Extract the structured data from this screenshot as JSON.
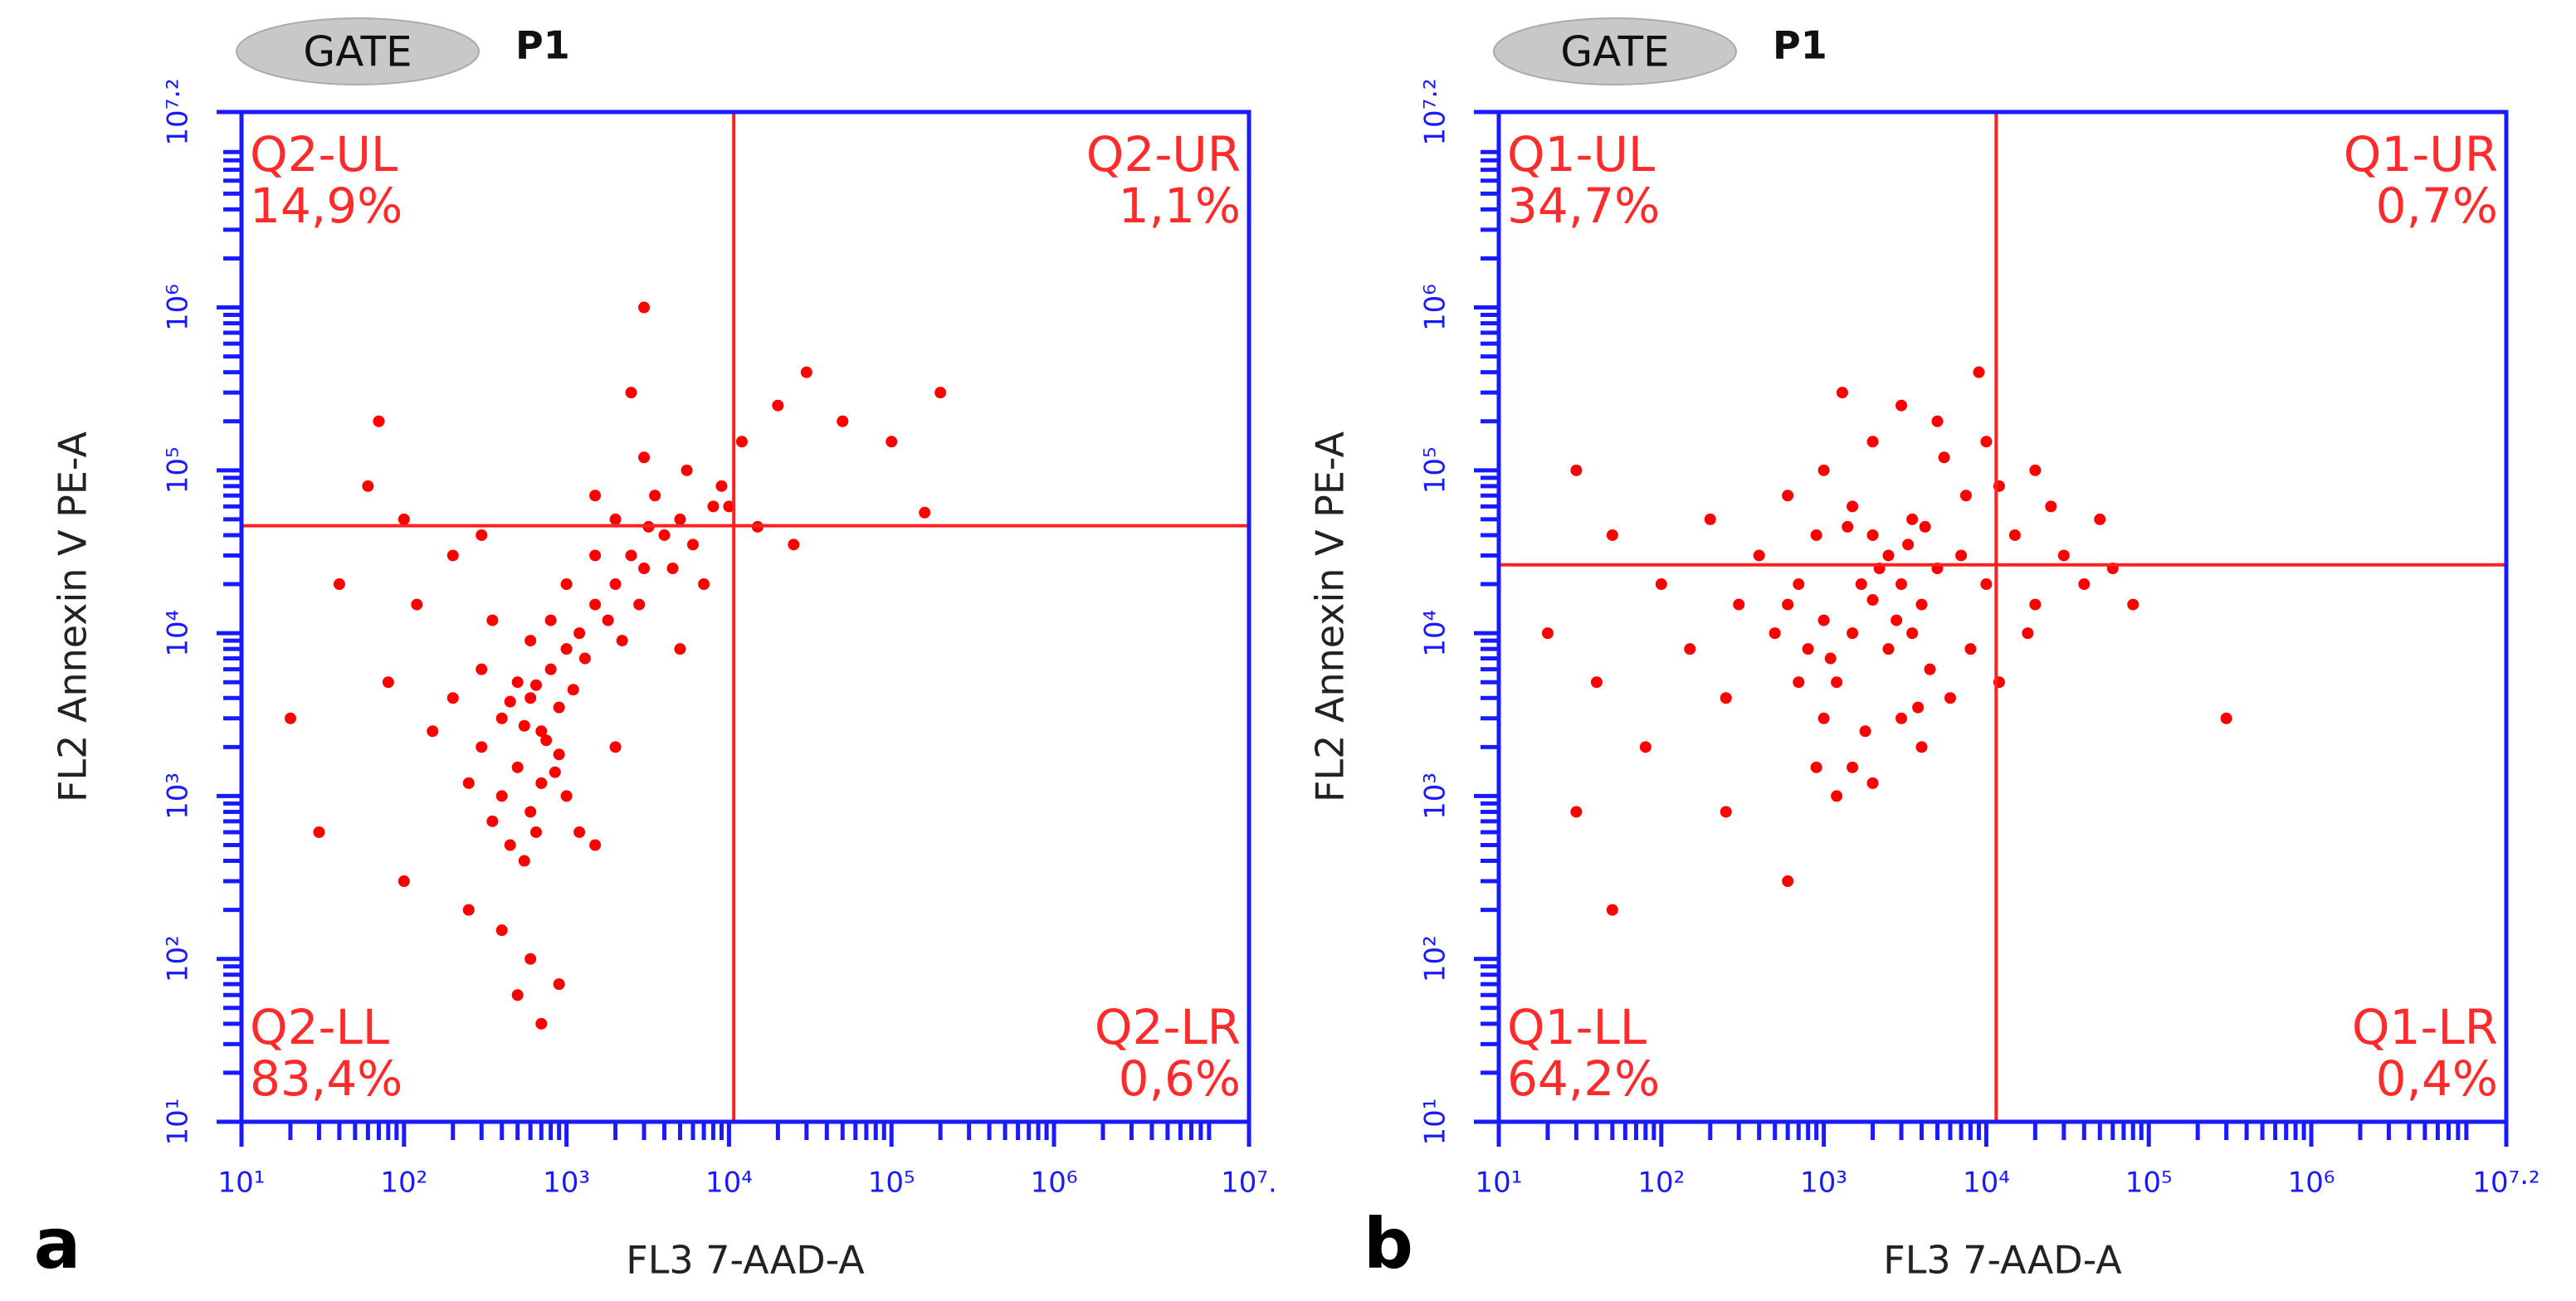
{
  "chart_data": [
    {
      "type": "scatter",
      "panel": "a",
      "gate_label": "GATE",
      "gate_name": "P1",
      "xlabel": "FL3 7-AAD-A",
      "ylabel": "FL2 Annexin V PE-A",
      "xscale": "log",
      "yscale": "log",
      "color": "#ff0000",
      "xlim": [
        10,
        15848932
      ],
      "ylim": [
        10,
        15848932
      ],
      "xticks": [
        {
          "value": 10,
          "label": "10¹"
        },
        {
          "value": 100,
          "label": "10²"
        },
        {
          "value": 1000,
          "label": "10³"
        },
        {
          "value": 10000,
          "label": "10⁴"
        },
        {
          "value": 100000,
          "label": "10⁵"
        },
        {
          "value": 1000000,
          "label": "10⁶"
        },
        {
          "value": 15848932,
          "label": "10⁷."
        }
      ],
      "yticks": [
        {
          "value": 10,
          "label": "10¹"
        },
        {
          "value": 100,
          "label": "10²"
        },
        {
          "value": 1000,
          "label": "10³"
        },
        {
          "value": 10000,
          "label": "10⁴"
        },
        {
          "value": 100000,
          "label": "10⁵"
        },
        {
          "value": 1000000,
          "label": "10⁶"
        },
        {
          "value": 15848932,
          "label": "10⁷·²"
        }
      ],
      "x_gate": 10700,
      "y_gate": 45700,
      "quadrants": [
        {
          "name": "Q2-UL",
          "value": 14.9,
          "value_label": "14,9%"
        },
        {
          "name": "Q2-UR",
          "value": 1.1,
          "value_label": "1,1%"
        },
        {
          "name": "Q2-LL",
          "value": 83.4,
          "value_label": "83,4%"
        },
        {
          "name": "Q2-LR",
          "value": 0.6,
          "value_label": "0,6%"
        }
      ],
      "x": [
        300,
        400,
        500,
        600,
        700,
        500,
        800,
        1000,
        400,
        600,
        700,
        900,
        1200,
        1500,
        2000,
        2500,
        3000,
        4000,
        5000,
        6000,
        8000,
        3500,
        2000,
        1500,
        1000,
        800,
        600,
        300,
        200,
        150,
        250,
        350,
        450,
        550,
        650,
        900,
        1100,
        1300,
        1800,
        2200,
        2800,
        3200,
        4500,
        7000,
        9000,
        5500,
        3000,
        12000,
        20000,
        30000,
        50000,
        100000,
        200000,
        40,
        60,
        80,
        120,
        20,
        30,
        100,
        250,
        400,
        600,
        900,
        700,
        500,
        1500,
        2000,
        1200,
        5000,
        10000,
        15000,
        200,
        300,
        100,
        2500,
        1000,
        750,
        550,
        450,
        650,
        850,
        3000,
        1500,
        350,
        160000,
        25000,
        70
      ],
      "values": [
        2000,
        3000,
        1500,
        4000,
        2500,
        5000,
        6000,
        8000,
        1000,
        800,
        1200,
        3500,
        10000,
        15000,
        20000,
        30000,
        25000,
        40000,
        50000,
        35000,
        60000,
        70000,
        50000,
        30000,
        20000,
        12000,
        9000,
        6000,
        4000,
        2500,
        1200,
        700,
        500,
        400,
        600,
        1800,
        4500,
        7000,
        12000,
        9000,
        15000,
        45000,
        25000,
        20000,
        80000,
        100000,
        120000,
        150000,
        250000,
        400000,
        200000,
        150000,
        300000,
        20000,
        80000,
        5000,
        15000,
        3000,
        600,
        300,
        200,
        150,
        100,
        70,
        40,
        60,
        500,
        2000,
        600,
        8000,
        60000,
        45000,
        30000,
        40000,
        50000,
        300000,
        1000,
        2200,
        2700,
        3800,
        4800,
        1400,
        1000000,
        70000,
        12000,
        55000,
        35000,
        200000
      ]
    },
    {
      "type": "scatter",
      "panel": "b",
      "gate_label": "GATE",
      "gate_name": "P1",
      "xlabel": "FL3 7-AAD-A",
      "ylabel": "FL2 Annexin V PE-A",
      "xscale": "log",
      "yscale": "log",
      "color": "#ff0000",
      "xlim": [
        10,
        15848932
      ],
      "ylim": [
        10,
        15848932
      ],
      "xticks": [
        {
          "value": 10,
          "label": "10¹"
        },
        {
          "value": 100,
          "label": "10²"
        },
        {
          "value": 1000,
          "label": "10³"
        },
        {
          "value": 10000,
          "label": "10⁴"
        },
        {
          "value": 100000,
          "label": "10⁵"
        },
        {
          "value": 1000000,
          "label": "10⁶"
        },
        {
          "value": 15848932,
          "label": "10⁷·²"
        }
      ],
      "yticks": [
        {
          "value": 10,
          "label": "10¹"
        },
        {
          "value": 100,
          "label": "10²"
        },
        {
          "value": 1000,
          "label": "10³"
        },
        {
          "value": 10000,
          "label": "10⁴"
        },
        {
          "value": 100000,
          "label": "10⁵"
        },
        {
          "value": 1000000,
          "label": "10⁶"
        },
        {
          "value": 15848932,
          "label": "10⁷·²"
        }
      ],
      "x_gate": 11500,
      "y_gate": 26300,
      "quadrants": [
        {
          "name": "Q1-UL",
          "value": 34.7,
          "value_label": "34,7%"
        },
        {
          "name": "Q1-UR",
          "value": 0.7,
          "value_label": "0,7%"
        },
        {
          "name": "Q1-LL",
          "value": 64.2,
          "value_label": "64,2%"
        },
        {
          "name": "Q1-LR",
          "value": 0.4,
          "value_label": "0,4%"
        }
      ],
      "x": [
        2000,
        1500,
        3000,
        2500,
        1000,
        4000,
        5000,
        1200,
        800,
        600,
        3500,
        2000,
        1500,
        7000,
        10000,
        15000,
        20000,
        25000,
        8000,
        6000,
        3000,
        1800,
        1000,
        700,
        500,
        400,
        300,
        200,
        100,
        50,
        30,
        20,
        40,
        80,
        150,
        250,
        900,
        1200,
        2000,
        4000,
        12000,
        18000,
        30000,
        40000,
        60000,
        50000,
        20000,
        10000,
        5000,
        3000,
        2000,
        1000,
        600,
        1300,
        5500,
        7500,
        12000,
        2500,
        3500,
        4500,
        1700,
        2200,
        2800,
        3300,
        900,
        1400,
        700,
        250,
        50,
        1500,
        30,
        80000,
        300000,
        9000,
        600,
        3800,
        1100,
        4200
      ],
      "values": [
        16000,
        10000,
        20000,
        30000,
        12000,
        15000,
        25000,
        5000,
        8000,
        15000,
        50000,
        40000,
        60000,
        30000,
        20000,
        40000,
        15000,
        60000,
        8000,
        4000,
        3000,
        2500,
        3000,
        20000,
        10000,
        30000,
        15000,
        50000,
        20000,
        40000,
        100000,
        10000,
        5000,
        2000,
        8000,
        4000,
        1500,
        1000,
        1200,
        2000,
        5000,
        10000,
        30000,
        20000,
        25000,
        50000,
        100000,
        150000,
        200000,
        250000,
        150000,
        100000,
        70000,
        300000,
        120000,
        70000,
        80000,
        8000,
        10000,
        6000,
        20000,
        25000,
        12000,
        35000,
        40000,
        45000,
        5000,
        800,
        200,
        1500,
        800,
        15000,
        3000,
        400000,
        300,
        3500,
        7000,
        45000
      ]
    }
  ]
}
